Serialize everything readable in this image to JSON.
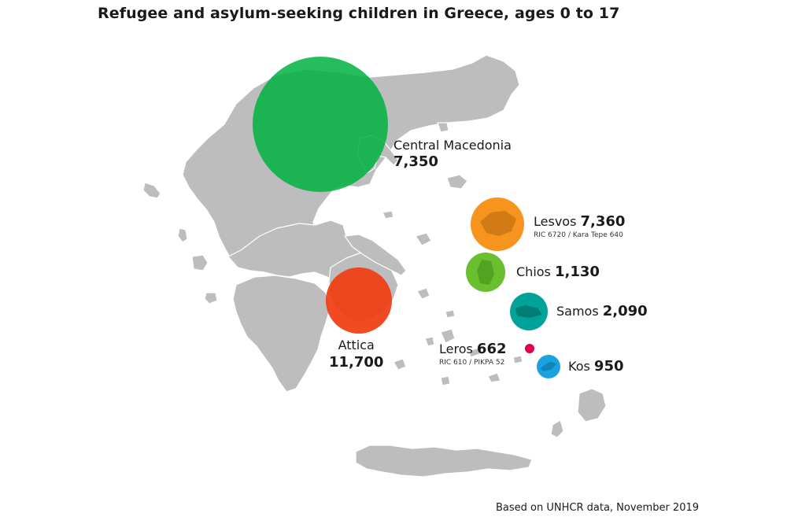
{
  "title": "Refugee and asylum-seeking children in Greece, ages 0 to 17",
  "source": "Based on UNHCR data, November 2019",
  "colors": {
    "land": "#bdbdbd",
    "central_macedonia": "#00b140",
    "attica": "#f03c10",
    "lesvos": "#f7941d",
    "chios": "#6abf2e",
    "samos": "#00a39a",
    "leros": "#e0004d",
    "kos": "#1aa3e0"
  },
  "regions": [
    {
      "id": "central_macedonia",
      "name": "Central Macedonia",
      "value": "7,350"
    },
    {
      "id": "lesvos",
      "name": "Lesvos",
      "value": "7,360",
      "detail": "RIC 6720 / Kara Tepe 640"
    },
    {
      "id": "chios",
      "name": "Chios",
      "value": "1,130"
    },
    {
      "id": "samos",
      "name": "Samos",
      "value": "2,090"
    },
    {
      "id": "leros",
      "name": "Leros",
      "value": "662",
      "detail": "RIC 610 / PIKPA 52"
    },
    {
      "id": "kos",
      "name": "Kos",
      "value": "950"
    },
    {
      "id": "attica",
      "name": "Attica",
      "value": "11,700"
    }
  ]
}
